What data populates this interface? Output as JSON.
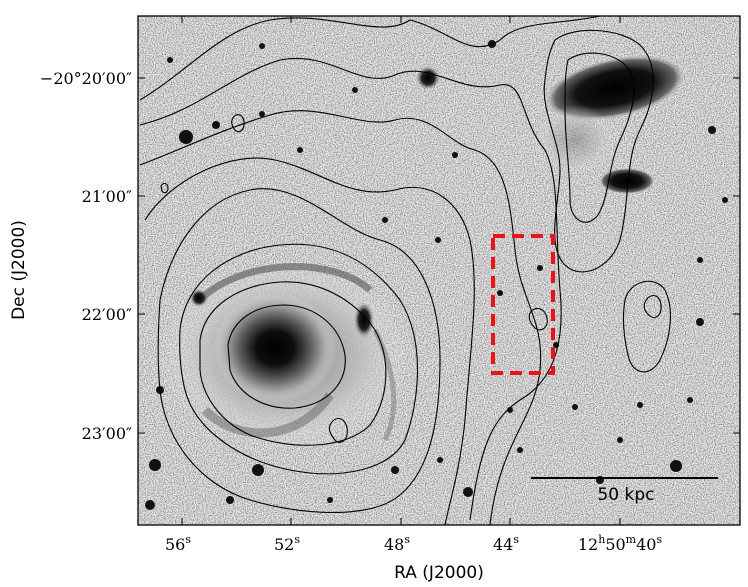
{
  "figure": {
    "x_axis_title": "RA (J2000)",
    "y_axis_title": "Dec (J2000)",
    "x_ticks": [
      {
        "main": "56",
        "sup": "s"
      },
      {
        "main": "52",
        "sup": "s"
      },
      {
        "main": "48",
        "sup": "s"
      },
      {
        "main": "44",
        "sup": "s"
      },
      {
        "main": "12",
        "sup": "h",
        "main2": "50",
        "sup2": "m",
        "main3": "40",
        "sup3": "s"
      }
    ],
    "y_ticks": [
      "−20°20′00″",
      "21′00″",
      "22′00″",
      "23′00″"
    ],
    "scale_bar_label": "50 kpc",
    "colors": {
      "frame": "#000000",
      "contour": "#000000",
      "highlight_box": "#e8141a",
      "sky_background": "#ececec"
    }
  }
}
